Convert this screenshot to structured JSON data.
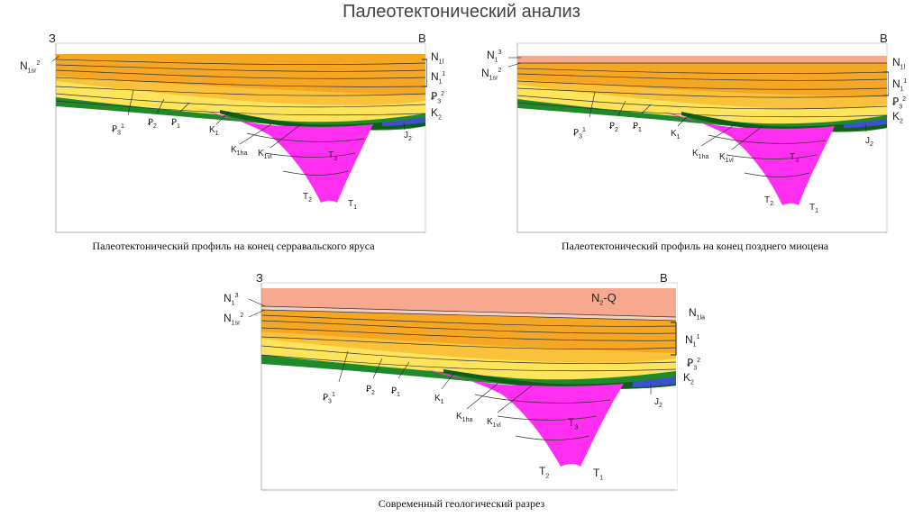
{
  "page_title": "Палеотектонический анализ",
  "colors": {
    "neogene_top": "#f7a98f",
    "neogene_orange": "#f5a623",
    "neogene_light": "#f9c23a",
    "paleogene_yellow": "#fde45a",
    "paleogene_pale": "#fff07a",
    "cretaceous_green": "#1f8a2a",
    "cretaceous_dark": "#0e5e1a",
    "jurassic_blue": "#3e4fd0",
    "triassic_magenta": "#ff2ef0"
  },
  "panels": [
    {
      "caption": "Палеотектонический профиль на конец серравальского яруса",
      "left_end": "З",
      "right_end": "В",
      "labels": {
        "n1sr": "N",
        "n1sr_sub": "1sr",
        "n1sr_sup": "2",
        "n1l": "N",
        "n1l_sub": "1l",
        "n11": "N",
        "n11_sub": "1",
        "n11_sup": "1",
        "p33": "Ꝑ",
        "p33_sub": "3",
        "p33_sup": "2",
        "k2": "K",
        "k2_sub": "2",
        "p31": "Ꝑ",
        "p31_sub": "3",
        "p31_sup": "1",
        "p2": "Ꝑ",
        "p2_sub": "2",
        "p1": "Ꝑ",
        "p1_sub": "1",
        "k1": "K",
        "k1_sub": "1",
        "k1ha": "K",
        "k1ha_sub": "1ha",
        "k1vl": "K",
        "k1vl_sub": "1vl",
        "t3": "T",
        "t3_sub": "3",
        "j2": "J",
        "j2_sub": "2",
        "t2": "T",
        "t2_sub": "2",
        "t1": "T",
        "t1_sub": "1"
      }
    },
    {
      "caption": "Палеотектонический профиль на конец позднего миоцена",
      "left_end": "",
      "right_end": "В",
      "labels": {
        "n13": "N",
        "n13_sub": "1",
        "n13_sup": "3",
        "n1sr": "N",
        "n1sr_sub": "1sr",
        "n1sr_sup": "2",
        "n1l": "N",
        "n1l_sub": "1l",
        "n11": "N",
        "n11_sub": "1",
        "n11_sup": "1",
        "p33": "Ꝑ",
        "p33_sub": "3",
        "p33_sup": "2",
        "k2": "K",
        "k2_sub": "2",
        "p31": "Ꝑ",
        "p31_sub": "3",
        "p31_sup": "1",
        "p2": "Ꝑ",
        "p2_sub": "2",
        "p1": "Ꝑ",
        "p1_sub": "1",
        "k1": "K",
        "k1_sub": "1",
        "k1ha": "K",
        "k1ha_sub": "1ha",
        "k1vl": "K",
        "k1vl_sub": "1vl",
        "t3": "T",
        "t3_sub": "3",
        "j2": "J",
        "j2_sub": "2",
        "t2": "T",
        "t2_sub": "2",
        "t1": "T",
        "t1_sub": "1"
      }
    },
    {
      "caption": "Современный геологический разрез",
      "left_end": "З",
      "right_end": "В",
      "top_unit": "N",
      "top_unit_sub": "2",
      "top_unit_suffix": "-Q",
      "labels": {
        "n13": "N",
        "n13_sub": "1",
        "n13_sup": "3",
        "n1sr": "N",
        "n1sr_sub": "1sr",
        "n1sr_sup": "2",
        "n1la": "N",
        "n1la_sub": "1la",
        "n11": "N",
        "n11_sub": "1",
        "n11_sup": "1",
        "p33": "Ꝑ",
        "p33_sub": "3",
        "p33_sup": "2",
        "k2": "K",
        "k2_sub": "2",
        "p31": "Ꝑ",
        "p31_sub": "3",
        "p31_sup": "1",
        "p2": "Ꝑ",
        "p2_sub": "2",
        "p1": "Ꝑ",
        "p1_sub": "1",
        "k1": "K",
        "k1_sub": "1",
        "k1ha": "K",
        "k1ha_sub": "1ha",
        "k1vl": "K",
        "k1vl_sub": "1vl",
        "t3": "T",
        "t3_sub": "3",
        "j2": "J",
        "j2_sub": "2",
        "t2": "T",
        "t2_sub": "2",
        "t1": "T",
        "t1_sub": "1"
      }
    }
  ]
}
